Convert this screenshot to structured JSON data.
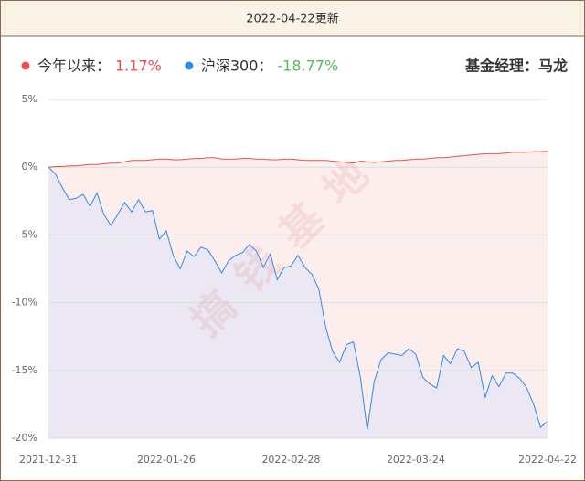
{
  "chart_data": {
    "type": "area-line",
    "update_note": "2022-04-22更新",
    "manager": "基金经理：马龙",
    "watermark": "搞钱基地",
    "categories": [
      "2021-12-31",
      null,
      null,
      null,
      null,
      null,
      null,
      null,
      null,
      null,
      null,
      null,
      null,
      null,
      null,
      null,
      null,
      "2022-01-26",
      null,
      null,
      null,
      null,
      null,
      null,
      null,
      null,
      null,
      null,
      null,
      null,
      null,
      null,
      null,
      null,
      null,
      "2022-02-28",
      null,
      null,
      null,
      null,
      null,
      null,
      null,
      null,
      null,
      null,
      null,
      null,
      null,
      null,
      null,
      null,
      null,
      "2022-03-24",
      null,
      null,
      null,
      null,
      null,
      null,
      null,
      null,
      null,
      null,
      null,
      null,
      null,
      null,
      null,
      null,
      null,
      null,
      "2022-04-22"
    ],
    "series": [
      {
        "name": "今年以来：",
        "legend_value": "1.17%",
        "color": "#e8504f",
        "fill": "#fdeeee",
        "values": [
          0,
          0.05,
          0.05,
          0.1,
          0.1,
          0.15,
          0.2,
          0.2,
          0.25,
          0.3,
          0.3,
          0.4,
          0.5,
          0.5,
          0.5,
          0.55,
          0.6,
          0.6,
          0.55,
          0.55,
          0.6,
          0.65,
          0.65,
          0.7,
          0.7,
          0.6,
          0.6,
          0.6,
          0.65,
          0.65,
          0.6,
          0.6,
          0.55,
          0.55,
          0.6,
          0.6,
          0.55,
          0.5,
          0.5,
          0.5,
          0.5,
          0.45,
          0.4,
          0.35,
          0.3,
          0.45,
          0.4,
          0.35,
          0.4,
          0.45,
          0.5,
          0.5,
          0.55,
          0.6,
          0.6,
          0.65,
          0.7,
          0.7,
          0.75,
          0.8,
          0.85,
          0.9,
          0.95,
          1.0,
          1.0,
          1.0,
          1.05,
          1.1,
          1.1,
          1.1,
          1.15,
          1.15,
          1.17
        ]
      },
      {
        "name": "沪深300：",
        "legend_value": "-18.77%",
        "legend_color": "#5cb85c",
        "color": "#2f8ae6",
        "fill": "#ece8f3",
        "values": [
          0,
          -0.5,
          -1.5,
          -2.4,
          -2.3,
          -2.0,
          -2.9,
          -1.9,
          -3.5,
          -4.3,
          -3.5,
          -2.6,
          -3.3,
          -2.4,
          -3.3,
          -3.2,
          -5.3,
          -4.7,
          -6.5,
          -7.5,
          -6.2,
          -6.6,
          -5.9,
          -6.1,
          -6.9,
          -7.8,
          -6.9,
          -6.5,
          -6.3,
          -5.7,
          -6.2,
          -7.4,
          -6.4,
          -8.3,
          -7.4,
          -7.3,
          -6.5,
          -7.4,
          -7.9,
          -9.0,
          -11.8,
          -13.6,
          -14.4,
          -13.1,
          -12.9,
          -15.5,
          -19.4,
          -15.8,
          -14.2,
          -13.7,
          -13.8,
          -13.9,
          -13.4,
          -13.8,
          -15.5,
          -16.0,
          -16.3,
          -13.9,
          -14.5,
          -13.4,
          -13.6,
          -14.8,
          -14.4,
          -17.0,
          -15.4,
          -16.2,
          -15.2,
          -15.2,
          -15.6,
          -16.3,
          -17.5,
          -19.2,
          -18.77
        ]
      }
    ],
    "ylim": [
      -20,
      5
    ],
    "yticks": [
      {
        "value": 5,
        "label": "5%"
      },
      {
        "value": 0,
        "label": "0%"
      },
      {
        "value": -5,
        "label": "-5%"
      },
      {
        "value": -10,
        "label": "-10%"
      },
      {
        "value": -15,
        "label": "-15%"
      },
      {
        "value": -20,
        "label": "-20%"
      }
    ],
    "grid": true
  }
}
